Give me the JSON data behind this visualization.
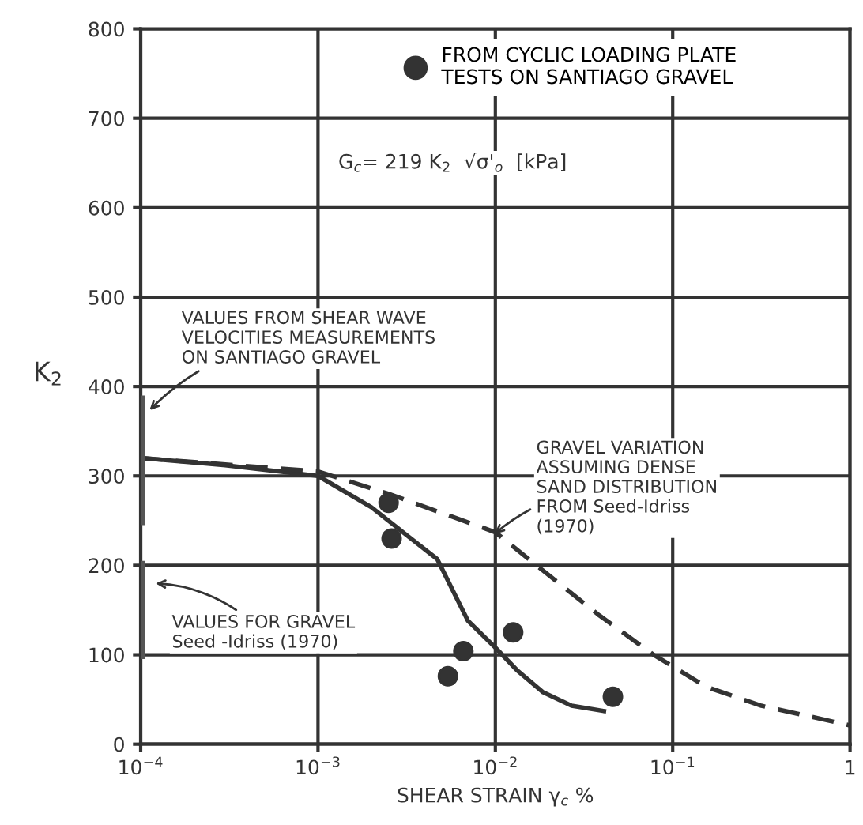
{
  "chart_data": {
    "type": "line",
    "xlabel": "SHEAR STRAIN γ$_{c}$ %",
    "ylabel": "K$_{2}$",
    "xlim": [
      0.0001,
      1
    ],
    "ylim": [
      0,
      800
    ],
    "log": "x",
    "xticks": [
      {
        "value": 0.0001,
        "label": "10$^{−4}$"
      },
      {
        "value": 0.001,
        "label": "10$^{−3}$"
      },
      {
        "value": 0.01,
        "label": "10$^{−2}$"
      },
      {
        "value": 0.1,
        "label": "10$^{−1}$"
      },
      1
    ],
    "yticks": [
      0,
      100,
      200,
      300,
      400,
      500,
      600,
      700,
      800
    ],
    "grid": true,
    "legend": "top",
    "series": [
      {
        "type": "scatter",
        "name": "FROM CYCLIC LOADING PLATE\nTESTS ON SANTIAGO GRAVEL",
        "color": "#333333",
        "marker": "circle",
        "x": [
          0.0025,
          0.0026,
          0.0054,
          0.0066,
          0.0126,
          0.046
        ],
        "values": [
          270,
          230,
          76,
          104,
          125,
          53
        ]
      },
      {
        "color": "#333333",
        "line_style": "solid",
        "x": [
          0.0001,
          0.0003,
          0.001,
          0.002,
          0.0032,
          0.0047,
          0.007,
          0.01,
          0.0132,
          0.0186,
          0.0269,
          0.041
        ],
        "values": [
          320,
          312,
          300,
          265,
          233,
          207,
          138,
          108,
          83,
          58,
          43,
          37
        ]
      },
      {
        "color": "#333333",
        "line_style": "dashed",
        "x": [
          0.0001,
          0.001,
          0.0025,
          0.01,
          0.0186,
          0.038,
          0.078,
          0.155,
          0.316,
          1
        ],
        "values": [
          320,
          305,
          280,
          237,
          194,
          145,
          100,
          64,
          43,
          21
        ]
      },
      {
        "color": "#555555",
        "line_style": "solid",
        "x": [
          0.0001,
          0.0001
        ],
        "values": [
          250,
          385
        ]
      },
      {
        "color": "#555555",
        "line_style": "solid",
        "x": [
          0.0001,
          0.0001
        ],
        "values": [
          100,
          200
        ]
      }
    ],
    "annotations": [
      "G$_{c}$= 219 K$_{2}$  √σ'$_{o}$  [kPa]",
      "VALUES FROM SHEAR WAVE\nVELOCITIES MEASUREMENTS\nON SANTIAGO GRAVEL",
      "GRAVEL VARIATION\nASSUMING DENSE\nSAND DISTRIBUTION\nFROM Seed-Idriss\n(1970)",
      "VALUES FOR GRAVEL\nSeed -Idriss (1970)"
    ]
  }
}
